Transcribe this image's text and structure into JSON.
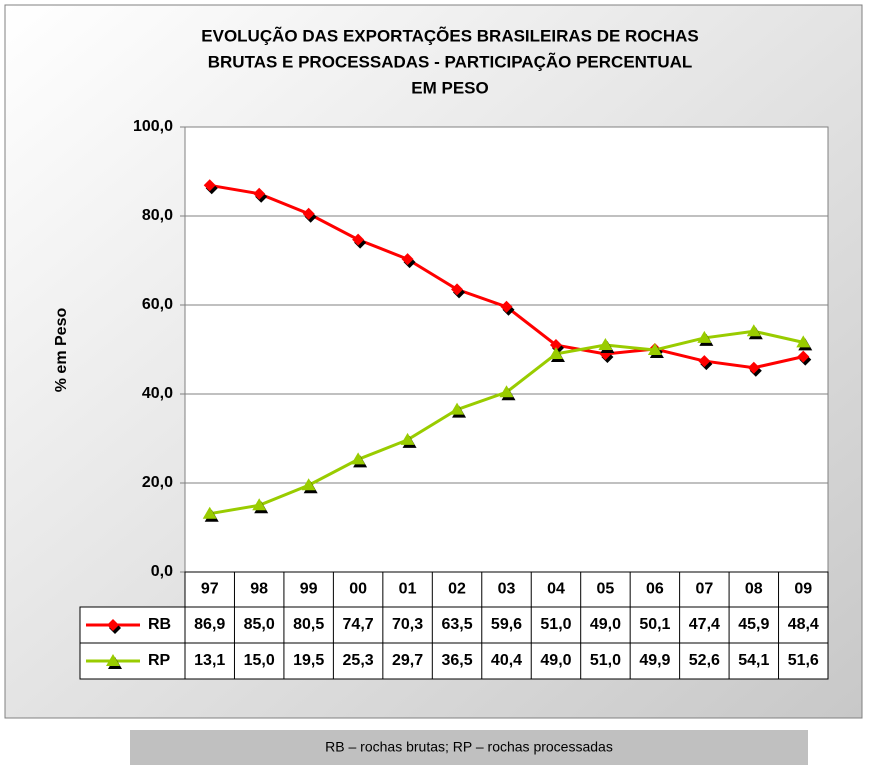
{
  "chart_data": {
    "type": "line",
    "title": [
      "EVOLUÇÃO DAS EXPORTAÇÕES BRASILEIRAS   DE ROCHAS",
      "BRUTAS E PROCESSADAS - PARTICIPAÇÃO PERCENTUAL",
      "EM PESO"
    ],
    "y_label": "% em Peso",
    "caption": "RB – rochas brutas; RP – rochas processadas",
    "categories": [
      "97",
      "98",
      "99",
      "00",
      "01",
      "02",
      "03",
      "04",
      "05",
      "06",
      "07",
      "08",
      "09"
    ],
    "series": [
      {
        "name": "RB",
        "color": "#ff0000",
        "marker": "diamond",
        "values": [
          86.9,
          85.0,
          80.5,
          74.7,
          70.3,
          63.5,
          59.6,
          51.0,
          49.0,
          50.1,
          47.4,
          45.9,
          48.4
        ],
        "value_labels": [
          "86,9",
          "85,0",
          "80,5",
          "74,7",
          "70,3",
          "63,5",
          "59,6",
          "51,0",
          "49,0",
          "50,1",
          "47,4",
          "45,9",
          "48,4"
        ]
      },
      {
        "name": "RP",
        "color": "#99cc00",
        "marker": "triangle",
        "values": [
          13.1,
          15.0,
          19.5,
          25.3,
          29.7,
          36.5,
          40.4,
          49.0,
          51.0,
          49.9,
          52.6,
          54.1,
          51.6
        ],
        "value_labels": [
          "13,1",
          "15,0",
          "19,5",
          "25,3",
          "29,7",
          "36,5",
          "40,4",
          "49,0",
          "51,0",
          "49,9",
          "52,6",
          "54,1",
          "51,6"
        ]
      }
    ],
    "ylim": [
      0,
      100
    ],
    "yticks": [
      {
        "value": 0,
        "label": "0,0"
      },
      {
        "value": 20,
        "label": "20,0"
      },
      {
        "value": 40,
        "label": "40,0"
      },
      {
        "value": 60,
        "label": "60,0"
      },
      {
        "value": 80,
        "label": "80,0"
      },
      {
        "value": 100,
        "label": "100,0"
      }
    ],
    "grid": true
  }
}
